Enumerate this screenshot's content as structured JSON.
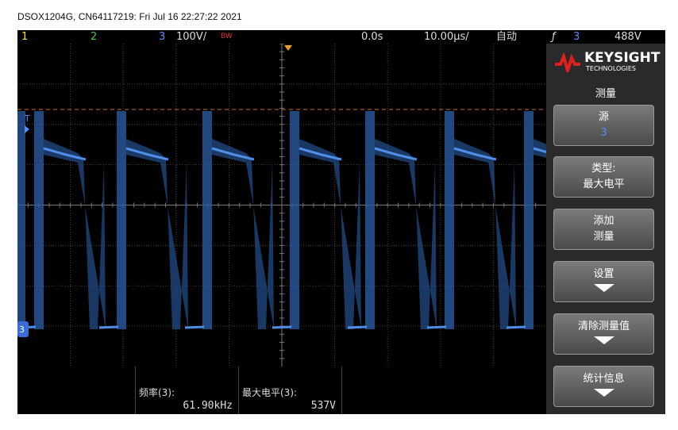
{
  "header": {
    "title": "DSOX1204G, CN64117219: Fri Jul 16 22:27:22 2021"
  },
  "top_bar": {
    "ch1": "1",
    "ch2": "2",
    "ch3": "3",
    "scale": "100V/",
    "bw": "BW",
    "delay": "0.0s",
    "timebase": "10.00µs/",
    "mode": "自动",
    "trigger_channel": "3",
    "trigger_level": "488V"
  },
  "markers": {
    "trigger": "T",
    "channel": "3"
  },
  "softkeys": {
    "brand": "KEYSIGHT",
    "brand_sub": "TECHNOLOGIES",
    "menu_title": "测量",
    "buttons": [
      {
        "label": "源",
        "value": "3"
      },
      {
        "label": "类型:",
        "value": "最大电平"
      },
      {
        "label": "添加",
        "value": "测量"
      },
      {
        "label": "设置"
      },
      {
        "label": "清除测量值"
      },
      {
        "label": "统计信息"
      }
    ]
  },
  "measurements": [
    {
      "label": "频率(3):",
      "value": "61.90kHz"
    },
    {
      "label": "最大电平(3):",
      "value": "537V"
    }
  ]
}
